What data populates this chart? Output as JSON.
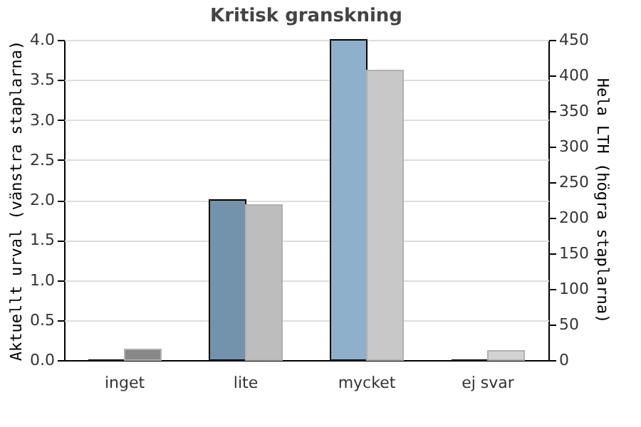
{
  "chart_data": {
    "type": "bar",
    "title": "Kritisk granskning",
    "categories": [
      "inget",
      "lite",
      "mycket",
      "ej svar"
    ],
    "series": [
      {
        "colors": [
          "#7393ad",
          "#7393ad",
          "#8fb0cb",
          "#8fb0cb"
        ],
        "values": [
          0,
          2.0,
          4.0,
          0
        ]
      },
      {
        "axis": "y2",
        "colors": [
          "#888888",
          "#bdbdbd",
          "#c8c8c8",
          "#d3d3d3"
        ],
        "values": [
          15,
          218,
          407,
          13
        ]
      }
    ],
    "ylabel": "Aktuellt urval (vänstra staplarna)",
    "y2label": "Hela LTH (högra staplarna)",
    "ylim": [
      0,
      4.0
    ],
    "yticks": [
      {
        "value": 0,
        "label": "0.0"
      },
      0.5,
      {
        "value": 1,
        "label": "1.0"
      },
      1.5,
      {
        "value": 2,
        "label": "2.0"
      },
      2.5,
      {
        "value": 3,
        "label": "3.0"
      },
      3.5,
      {
        "value": 4,
        "label": "4.0"
      }
    ],
    "y2lim": [
      0,
      450
    ],
    "y2ticks": [
      0,
      50,
      100,
      150,
      200,
      250,
      300,
      350,
      400,
      450
    ],
    "grid": "y"
  }
}
